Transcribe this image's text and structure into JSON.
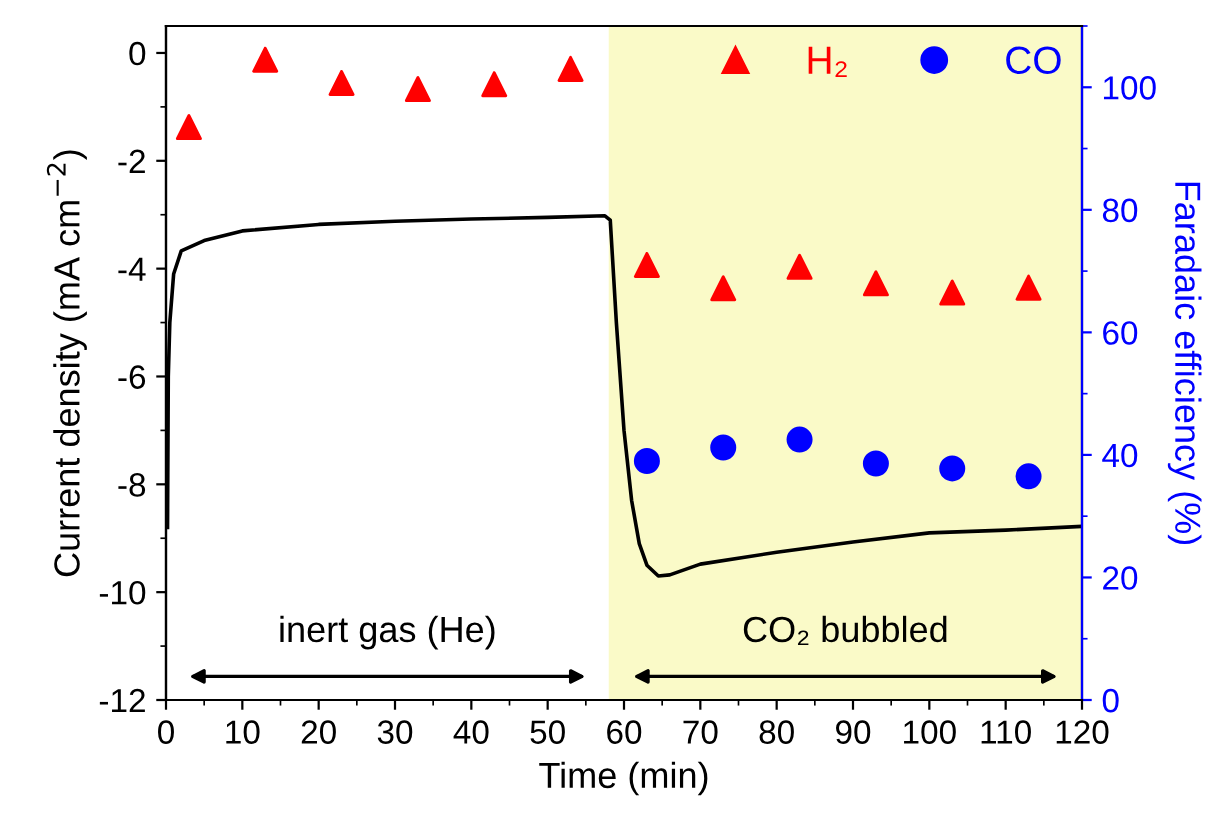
{
  "chart_data": {
    "type": "line",
    "xlabel": "Time (min)",
    "ylabel": "Current density (mA cm$^{−2}$)",
    "y2label": "Faradaic efficiency (%)",
    "xlim": [
      0,
      120
    ],
    "xticks": [
      0,
      10,
      20,
      30,
      40,
      50,
      60,
      70,
      80,
      90,
      100,
      110,
      120
    ],
    "ylim": [
      -12,
      0.5
    ],
    "yticks": [
      -12,
      -10,
      -8,
      -6,
      -4,
      -2,
      0
    ],
    "y2lim": [
      0,
      110
    ],
    "y2ticks": [
      0,
      20,
      40,
      60,
      80,
      100
    ],
    "grid": false,
    "legend": "top right",
    "annotations": [
      "inert gas (He)"
    ],
    "bands": [
      {
        "axis": "x",
        "from": 58,
        "to": 120,
        "label": "CO₂ bubbled",
        "color": "#fafac8"
      }
    ],
    "series": [
      {
        "color": "#000000",
        "line_style": "solid",
        "marker": "none",
        "x": [
          0.2,
          0.3,
          0.5,
          1,
          2,
          5,
          10,
          20,
          30,
          40,
          50,
          57.5,
          58.2,
          59,
          60,
          61,
          62,
          63,
          64.5,
          66,
          70,
          80,
          90,
          100,
          110,
          120
        ],
        "values": [
          -8.8,
          -6,
          -5,
          -4.1,
          -3.67,
          -3.48,
          -3.3,
          -3.18,
          -3.12,
          -3.08,
          -3.05,
          -3.02,
          -3.1,
          -5,
          -7,
          -8.3,
          -9.1,
          -9.5,
          -9.7,
          -9.68,
          -9.48,
          -9.26,
          -9.07,
          -8.9,
          -8.85,
          -8.78
        ]
      },
      {
        "type": "scatter",
        "name": "H₂",
        "color": "#ff0000",
        "marker": "triangle",
        "axis": "y2",
        "x": [
          3,
          13,
          23,
          33,
          43,
          53,
          63,
          73,
          83,
          93,
          103,
          113
        ],
        "values": [
          93.5,
          104.5,
          100.7,
          99.7,
          100.5,
          103,
          71,
          67.2,
          70.7,
          68,
          66.5,
          67.3
        ]
      },
      {
        "type": "scatter",
        "name": "CO",
        "color": "#0000ff",
        "marker": "circle",
        "axis": "y2",
        "x": [
          63,
          73,
          83,
          93,
          103,
          113
        ],
        "values": [
          39,
          41.2,
          42.5,
          38.6,
          37.8,
          36.5
        ]
      }
    ]
  }
}
